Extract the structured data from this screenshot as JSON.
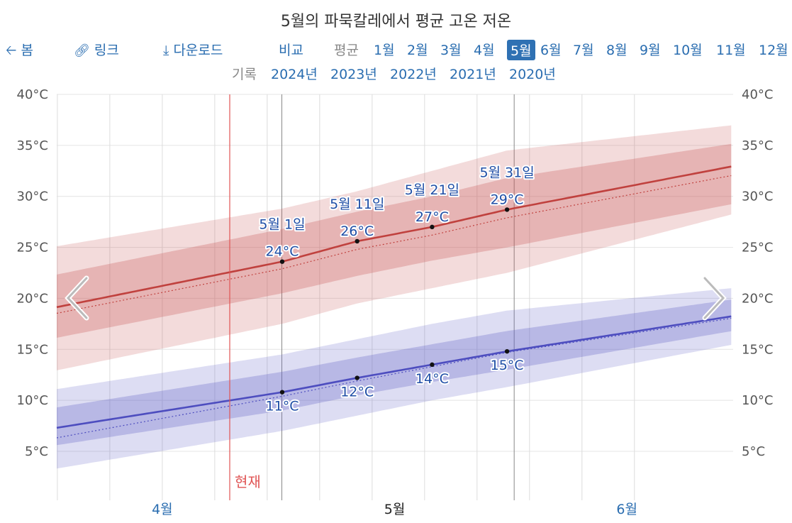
{
  "title": "5월의 파묵칼레에서 평균 고온 저온",
  "nav": {
    "back_label": "봄",
    "link_label": "링크",
    "download_label": "다운로드",
    "compare_label": "비교",
    "average_label": "평균",
    "months": [
      "1월",
      "2월",
      "3월",
      "4월",
      "5월",
      "6월",
      "7월",
      "8월",
      "9월",
      "10월",
      "11월",
      "12월"
    ],
    "selected_month": "5월",
    "history_label": "기록",
    "years": [
      "2024년",
      "2023년",
      "2022년",
      "2021년",
      "2020년"
    ]
  },
  "colors": {
    "high": "#c0413e",
    "low": "#4d4dbf",
    "now": "#e05555",
    "link": "#2a6db0"
  },
  "now_label": "현재",
  "chart_data": {
    "type": "line",
    "x_unit": "days relative to May 1",
    "x_range": [
      -48,
      47
    ],
    "ylim": [
      0,
      40
    ],
    "yticks": [
      "5°C",
      "10°C",
      "15°C",
      "20°C",
      "25°C",
      "30°C",
      "35°C",
      "40°C"
    ],
    "ytick_values": [
      5,
      10,
      15,
      20,
      25,
      30,
      35,
      40
    ],
    "month_labels": [
      {
        "label": "4월",
        "x": -16
      },
      {
        "label": "5월",
        "x": 15
      },
      {
        "label": "6월",
        "x": 46
      }
    ],
    "series": [
      {
        "key": "high",
        "x": [
          -31,
          0,
          10,
          20,
          30,
          64
        ],
        "mean": [
          19.0,
          23.6,
          25.6,
          27.0,
          28.7,
          33.5
        ],
        "p25": [
          16.0,
          20.5,
          22.2,
          23.7,
          25.0,
          29.8
        ],
        "p75": [
          22.2,
          26.8,
          28.5,
          30.0,
          31.8,
          35.6
        ],
        "p10": [
          12.8,
          17.5,
          19.5,
          21.0,
          22.5,
          29.0
        ],
        "p90": [
          25.0,
          28.8,
          30.5,
          32.5,
          34.5,
          37.3
        ],
        "prev_year": [
          18.4,
          22.9,
          24.8,
          26.2,
          27.9,
          32.6
        ]
      },
      {
        "key": "low",
        "x": [
          -31,
          0,
          10,
          20,
          30,
          64
        ],
        "mean": [
          7.2,
          10.8,
          12.2,
          13.5,
          14.8,
          18.7
        ],
        "p25": [
          5.5,
          9.0,
          10.5,
          11.8,
          13.0,
          17.3
        ],
        "p75": [
          9.2,
          12.8,
          14.2,
          15.5,
          16.8,
          20.3
        ],
        "p10": [
          3.2,
          7.0,
          8.5,
          10.0,
          11.3,
          16.0
        ],
        "p90": [
          11.0,
          14.5,
          16.0,
          17.5,
          18.8,
          21.3
        ],
        "prev_year": [
          6.2,
          10.4,
          11.9,
          13.3,
          14.7,
          18.5
        ]
      }
    ],
    "annotations": [
      {
        "series": "high",
        "x": 0,
        "y": 23.6,
        "date": "5월 1일",
        "value": "24°C"
      },
      {
        "series": "high",
        "x": 10,
        "y": 25.6,
        "date": "5월 11일",
        "value": "26°C"
      },
      {
        "series": "high",
        "x": 20,
        "y": 27.0,
        "date": "5월 21일",
        "value": "27°C"
      },
      {
        "series": "high",
        "x": 30,
        "y": 28.7,
        "date": "5월 31일",
        "value": "29°C"
      },
      {
        "series": "low",
        "x": 0,
        "y": 10.8,
        "value": "11°C"
      },
      {
        "series": "low",
        "x": 10,
        "y": 12.2,
        "value": "12°C"
      },
      {
        "series": "low",
        "x": 20,
        "y": 13.5,
        "value": "14°C"
      },
      {
        "series": "low",
        "x": 30,
        "y": 14.8,
        "value": "15°C"
      }
    ],
    "now_x": -7
  }
}
